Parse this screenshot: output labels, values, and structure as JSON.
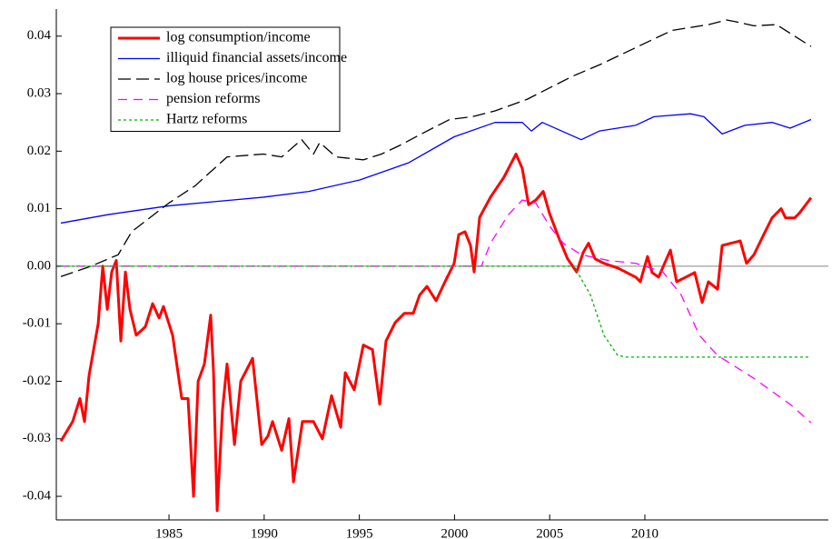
{
  "chart_data": {
    "type": "line",
    "xlim": [
      1979.08,
      2019.64
    ],
    "ylim": [
      -0.0441,
      0.0447
    ],
    "xticks": [
      1985,
      1990,
      1995,
      2000,
      2005,
      2010
    ],
    "yticks": [
      -0.04,
      -0.03,
      -0.02,
      -0.01,
      {
        "value": 0,
        "label": "0.00"
      },
      0.01,
      0.02,
      0.03,
      0.04
    ],
    "reference_line": 0,
    "legend": "top-left",
    "series": [
      {
        "name": "log consumption/income",
        "color": "#ff0000",
        "dash": "solid",
        "x": [
          1979.32,
          1979.94,
          1980.32,
          1980.56,
          1980.8,
          1981.04,
          1981.28,
          1981.52,
          1981.76,
          1981.99,
          1982.23,
          1982.47,
          1982.71,
          1982.95,
          1983.28,
          1983.76,
          1984.14,
          1984.48,
          1984.71,
          1985.19,
          1985.67,
          1986.0,
          1986.29,
          1986.53,
          1986.86,
          1987.19,
          1987.34,
          1987.53,
          1987.81,
          1988.05,
          1988.44,
          1988.77,
          1989.39,
          1989.87,
          1990.2,
          1990.44,
          1990.92,
          1991.3,
          1991.54,
          1992.01,
          1992.59,
          1993.06,
          1993.54,
          1994.02,
          1994.26,
          1994.73,
          1995.21,
          1995.69,
          1996.07,
          1996.4,
          1996.88,
          1997.36,
          1997.83,
          1998.17,
          1998.55,
          1999.03,
          1999.5,
          1999.98,
          2000.22,
          2000.55,
          2000.84,
          2001.03,
          2001.32,
          2001.89,
          2002.6,
          2003.23,
          2003.56,
          2003.89,
          2004.27,
          2004.66,
          2004.99,
          2005.47,
          2005.94,
          2006.42,
          2006.76,
          2007.04,
          2007.38,
          2007.85,
          2008.57,
          2009.52,
          2009.76,
          2010.14,
          2010.38,
          2010.72,
          2011.34,
          2011.67,
          2012.15,
          2012.62,
          2013.01,
          2013.34,
          2013.82,
          2014.06,
          2014.53,
          2015.01,
          2015.34,
          2015.73,
          2016.2,
          2016.68,
          2017.16,
          2017.39,
          2017.87,
          2018.11,
          2018.73
        ],
        "values": [
          -0.0304,
          -0.027,
          -0.023,
          -0.027,
          -0.019,
          -0.0145,
          -0.01,
          0.0,
          -0.0075,
          -0.001,
          0.001,
          -0.013,
          -0.001,
          -0.0075,
          -0.012,
          -0.0105,
          -0.0065,
          -0.009,
          -0.007,
          -0.012,
          -0.023,
          -0.023,
          -0.04,
          -0.02,
          -0.017,
          -0.0085,
          -0.0185,
          -0.0425,
          -0.025,
          -0.017,
          -0.031,
          -0.02,
          -0.016,
          -0.031,
          -0.0295,
          -0.027,
          -0.032,
          -0.0265,
          -0.0375,
          -0.027,
          -0.027,
          -0.03,
          -0.0225,
          -0.028,
          -0.0185,
          -0.0215,
          -0.0137,
          -0.0145,
          -0.024,
          -0.013,
          -0.0098,
          -0.0082,
          -0.0082,
          -0.005,
          -0.0035,
          -0.006,
          -0.0027,
          0.0005,
          0.0055,
          0.006,
          0.0036,
          -0.001,
          0.0085,
          0.012,
          0.0155,
          0.0195,
          0.017,
          0.0107,
          0.0115,
          0.013,
          0.0092,
          0.005,
          0.0013,
          -0.001,
          0.0024,
          0.004,
          0.0013,
          0.0005,
          -0.0003,
          -0.0019,
          -0.0027,
          0.0017,
          -0.0011,
          -0.0019,
          0.0028,
          -0.0027,
          -0.0019,
          -0.0011,
          -0.0063,
          -0.0027,
          -0.004,
          0.0036,
          0.004,
          0.0044,
          0.0005,
          0.002,
          0.0052,
          0.0084,
          0.01,
          0.0084,
          0.0084,
          0.0092,
          0.0119
        ]
      },
      {
        "name": "illiquid financial assets/income",
        "color": "#0000ff",
        "dash": "solid",
        "x": [
          1979.32,
          1981.85,
          1985.0,
          1989.96,
          1992.35,
          1995.02,
          1997.6,
          1999.98,
          2002.13,
          2003.56,
          2004.04,
          2004.61,
          2006.66,
          2007.61,
          2009.52,
          2010.48,
          2012.39,
          2013.1,
          2014.06,
          2015.25,
          2016.68,
          2017.63,
          2018.73
        ],
        "values": [
          0.0075,
          0.009,
          0.0105,
          0.012,
          0.013,
          0.015,
          0.018,
          0.0225,
          0.025,
          0.025,
          0.0235,
          0.025,
          0.022,
          0.0235,
          0.0245,
          0.026,
          0.0265,
          0.026,
          0.023,
          0.0245,
          0.025,
          0.024,
          0.0255
        ]
      },
      {
        "name": "log house prices/income",
        "color": "#000000",
        "dash": "long",
        "x": [
          1979.32,
          1980.9,
          1982.33,
          1983.04,
          1985.0,
          1986.38,
          1988.05,
          1989.96,
          1990.92,
          1991.97,
          1992.59,
          1992.92,
          1993.78,
          1995.21,
          1996.16,
          1997.12,
          1998.55,
          1999.74,
          2000.94,
          2002.13,
          2003.8,
          2006.18,
          2007.61,
          2009.52,
          2011.43,
          2013.34,
          2014.29,
          2014.77,
          2015.73,
          2016.92,
          2017.63,
          2018.73
        ],
        "values": [
          -0.0018,
          0.0,
          0.002,
          0.006,
          0.011,
          0.014,
          0.019,
          0.0195,
          0.019,
          0.022,
          0.0195,
          0.0215,
          0.019,
          0.0185,
          0.0195,
          0.021,
          0.0235,
          0.0255,
          0.026,
          0.027,
          0.029,
          0.033,
          0.035,
          0.038,
          0.041,
          0.042,
          0.0428,
          0.0425,
          0.0418,
          0.042,
          0.0405,
          0.0382
        ]
      },
      {
        "name": "pension reforms",
        "color": "#ff00ff",
        "dash": "dash",
        "x": [
          1979.32,
          2001.41,
          2001.89,
          2002.84,
          2003.56,
          2004.27,
          2004.99,
          2005.71,
          2006.66,
          2008.09,
          2009.52,
          2010.95,
          2011.91,
          2012.86,
          2013.82,
          2015.73,
          2017.63,
          2018.73
        ],
        "values": [
          0.0,
          0.0,
          0.004,
          0.009,
          0.0115,
          0.011,
          0.007,
          0.004,
          0.002,
          0.001,
          0.0005,
          -0.001,
          -0.005,
          -0.012,
          -0.0155,
          -0.0195,
          -0.024,
          -0.0272
        ]
      },
      {
        "name": "Hartz reforms",
        "color": "#00b000",
        "dash": "dot",
        "x": [
          1979.32,
          2006.28,
          2007.14,
          2007.85,
          2008.57,
          2009.05,
          2018.73
        ],
        "values": [
          0.0,
          0.0,
          -0.005,
          -0.012,
          -0.0155,
          -0.0158,
          -0.0158
        ]
      }
    ]
  }
}
